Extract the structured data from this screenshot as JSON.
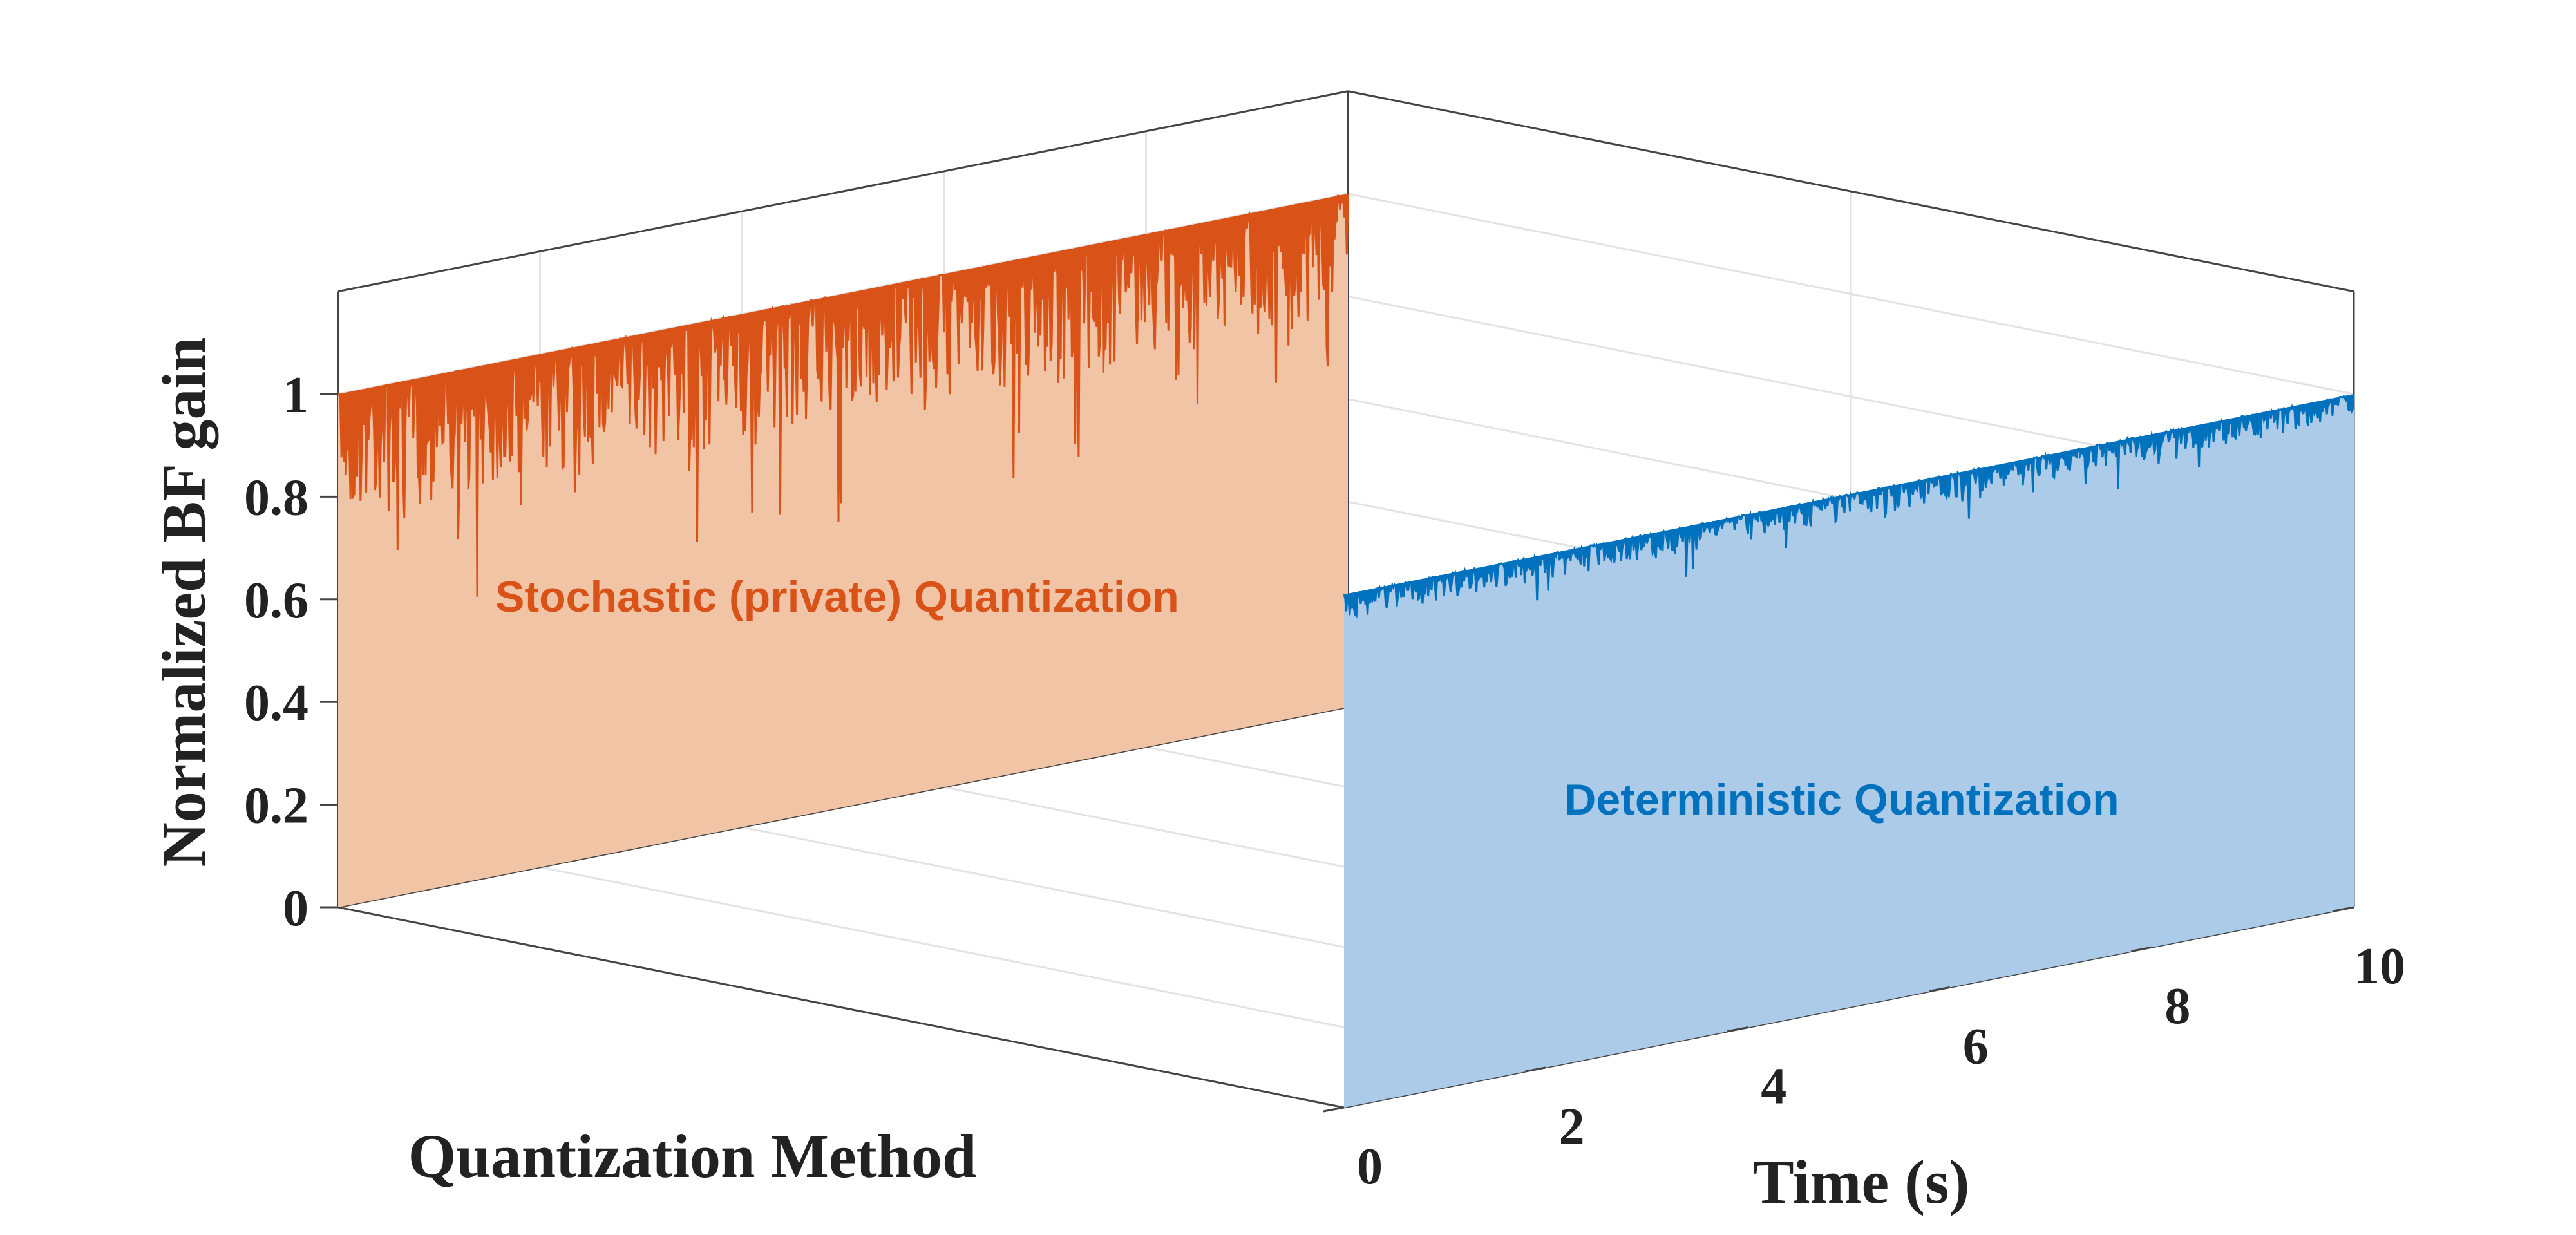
{
  "chart_data": {
    "type": "area",
    "title": "",
    "xlabel": "Time (s)",
    "ylabel": "Normalized BF gain",
    "depth_label": "Quantization Method",
    "xlim": [
      0,
      10
    ],
    "ylim": [
      0,
      1.2
    ],
    "xticks": [
      "0",
      "2",
      "4",
      "6",
      "8",
      "10"
    ],
    "yticks": [
      "0",
      "0.2",
      "0.4",
      "0.6",
      "0.8",
      "1"
    ],
    "grid": true,
    "series": [
      {
        "name": "Stochastic (private) Quantization",
        "color": "#D95319",
        "fill_color": "#F2C4A6",
        "level": 1.0,
        "typical_min": 0.75,
        "dips_to": 0.55
      },
      {
        "name": "Deterministic Quantization",
        "color": "#0072BD",
        "fill_color": "#ABCBE8",
        "level": 1.0,
        "typical_min": 0.95,
        "dips_to": 0.9
      }
    ]
  }
}
